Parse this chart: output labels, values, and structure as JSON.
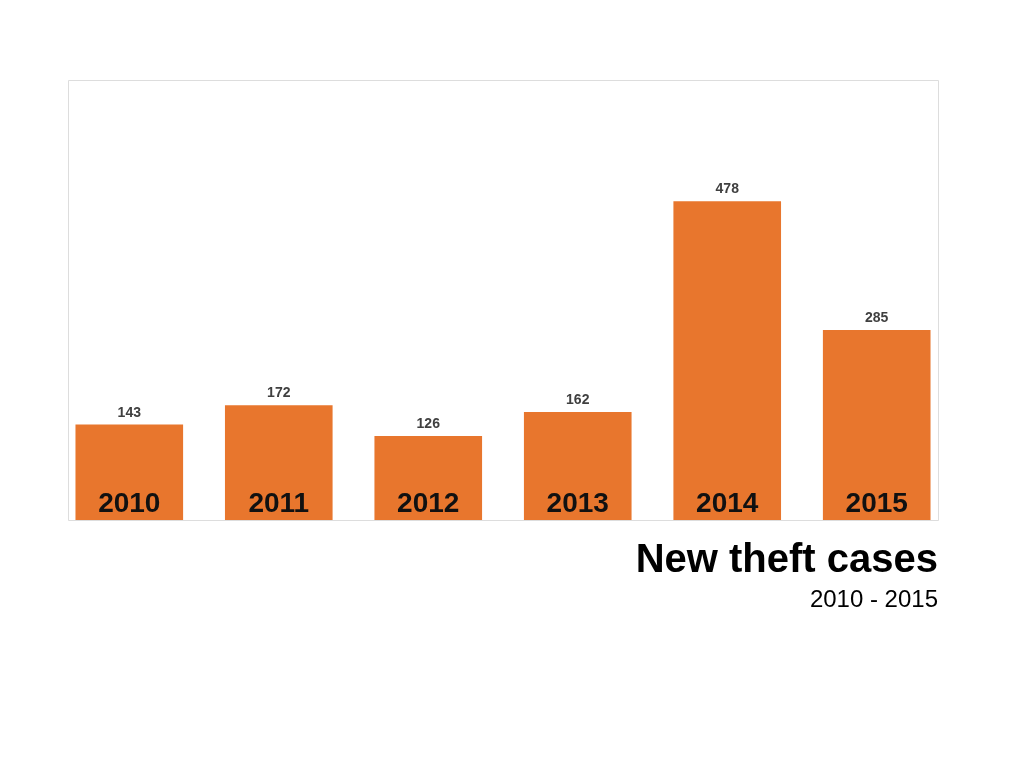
{
  "chart_data": {
    "type": "bar",
    "title": "New theft cases",
    "subtitle": "2010 - 2015",
    "categories": [
      "2010",
      "2011",
      "2012",
      "2013",
      "2014",
      "2015"
    ],
    "values": [
      143,
      172,
      126,
      162,
      478,
      285
    ],
    "color": "#e8762d",
    "data_labels": true
  }
}
